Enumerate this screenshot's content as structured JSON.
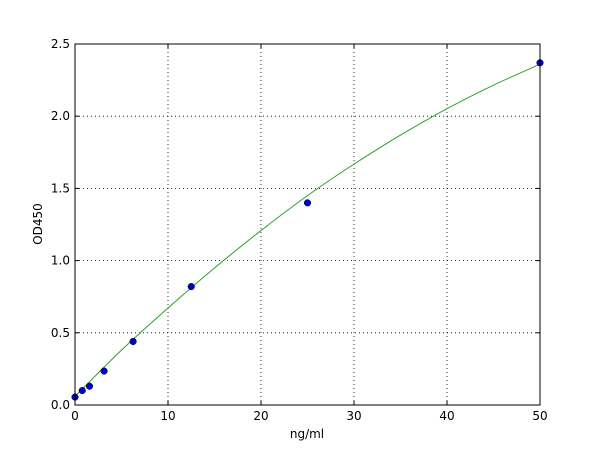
{
  "chart_data": {
    "type": "scatter",
    "title": "",
    "xlabel": "ng/ml",
    "ylabel": "OD450",
    "xlim": [
      0,
      50
    ],
    "ylim": [
      0,
      2.5
    ],
    "xticks": [
      0,
      10,
      20,
      30,
      40,
      50
    ],
    "xtick_labels": [
      "0",
      "10",
      "20",
      "30",
      "40",
      "50"
    ],
    "yticks": [
      0,
      0.5,
      1.0,
      1.5,
      2.0,
      2.5
    ],
    "ytick_labels": [
      "0.0",
      "0.5",
      "1.0",
      "1.5",
      "2.0",
      "2.5"
    ],
    "grid": true,
    "points": {
      "x": [
        0,
        0.78,
        1.56,
        3.125,
        6.25,
        12.5,
        25,
        50
      ],
      "y": [
        0.055,
        0.1,
        0.13,
        0.235,
        0.44,
        0.82,
        1.4,
        2.37
      ],
      "color": "#0000cc"
    },
    "fit_curve": {
      "x": [
        0,
        5,
        10,
        15,
        20,
        25,
        30,
        35,
        40,
        45,
        50
      ],
      "y": [
        0.06,
        0.38,
        0.672,
        0.949,
        1.208,
        1.45,
        1.668,
        1.869,
        2.052,
        2.215,
        2.36
      ],
      "color": "#2ca02c"
    }
  }
}
